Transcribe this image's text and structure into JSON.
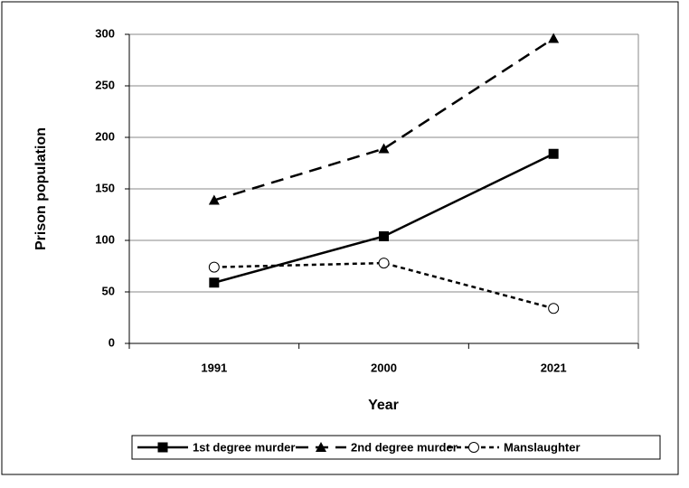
{
  "chart_data": {
    "type": "line",
    "x_label": "Year",
    "y_label": "Prison population",
    "categories": [
      "1991",
      "2000",
      "2021"
    ],
    "series": [
      {
        "name": "1st degree murder",
        "color": "#000000",
        "marker": "square",
        "dash": "solid",
        "values": [
          59,
          104,
          184
        ]
      },
      {
        "name": "2nd degree murder",
        "color": "#000000",
        "marker": "triangle",
        "dash": "long",
        "values": [
          139,
          189,
          296
        ]
      },
      {
        "name": "Manslaughter",
        "color": "#000000",
        "marker": "circle-open",
        "dash": "short",
        "values": [
          74,
          78,
          34
        ]
      }
    ],
    "ylim": [
      0,
      300
    ],
    "yticks": [
      0,
      50,
      100,
      150,
      200,
      250,
      300
    ],
    "grid": true,
    "legend": "bottom"
  }
}
